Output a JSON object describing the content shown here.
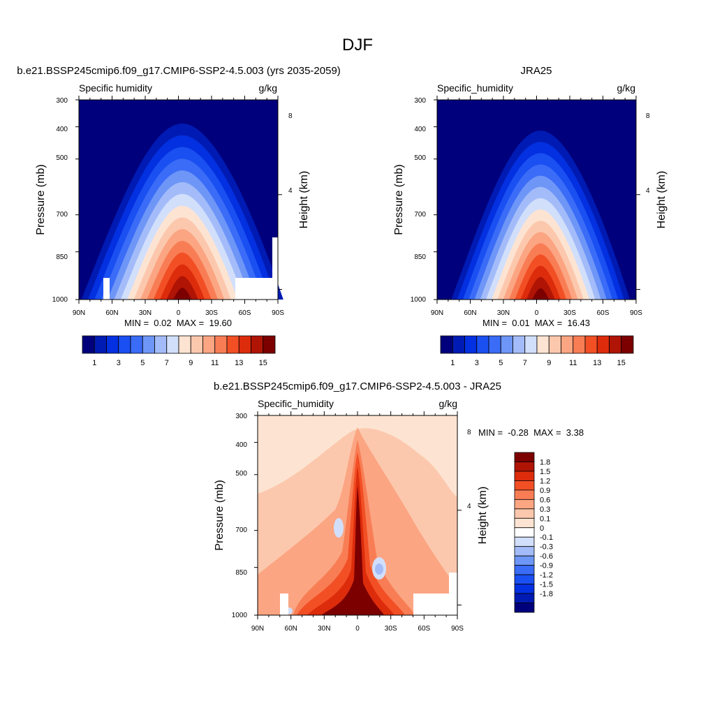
{
  "page_title": "DJF",
  "colors": {
    "abs_scale": [
      "#00007d",
      "#001bb3",
      "#0330e0",
      "#1a4ff2",
      "#3a6cf7",
      "#6e96f7",
      "#a3bcf9",
      "#d2dffb",
      "#fde4d2",
      "#fcc8ad",
      "#fba582",
      "#f87d55",
      "#f24f25",
      "#dc2c0c",
      "#b01405",
      "#7d0000"
    ],
    "diff_scale": [
      "#00007d",
      "#001bb3",
      "#0330e0",
      "#1a4ff2",
      "#3a6cf7",
      "#6e96f7",
      "#a3bcf9",
      "#d2dffb",
      "#ffffff",
      "#fde4d2",
      "#fcc8ad",
      "#fba582",
      "#f87d55",
      "#f24f25",
      "#dc2c0c",
      "#b01405",
      "#7d0000"
    ]
  },
  "chart_data": [
    {
      "type": "heatmap",
      "title": "b.e21.BSSP245cmip6.f09_g17.CMIP6-SSP2-4.5.003 (yrs 2035-2059)",
      "left_string": "Specific humidity",
      "right_string": "g/kg",
      "ylabel": "Pressure (mb)",
      "ylabel_right": "Height (km)",
      "x_ticks": [
        "90N",
        "60N",
        "30N",
        "0",
        "30S",
        "60S",
        "90S"
      ],
      "y_ticks": [
        "300",
        "400",
        "500",
        "700",
        "850",
        "1000"
      ],
      "y_ticks_right": [
        "8",
        "4"
      ],
      "stats": {
        "min_label": "MIN =",
        "min": "0.02",
        "max_label": "MAX =",
        "max": "19.60"
      },
      "peak": 19.6,
      "colorbar": {
        "orientation": "horizontal",
        "labels": [
          "1",
          "3",
          "5",
          "7",
          "9",
          "11",
          "13",
          "15"
        ]
      }
    },
    {
      "type": "heatmap",
      "title": "JRA25",
      "left_string": "Specific_humidity",
      "right_string": "g/kg",
      "ylabel": "Pressure (mb)",
      "ylabel_right": "Height (km)",
      "x_ticks": [
        "90N",
        "60N",
        "30N",
        "0",
        "30S",
        "60S",
        "90S"
      ],
      "y_ticks": [
        "300",
        "400",
        "500",
        "700",
        "850",
        "1000"
      ],
      "y_ticks_right": [
        "8",
        "4"
      ],
      "stats": {
        "min_label": "MIN =",
        "min": "0.01",
        "max_label": "MAX =",
        "max": "16.43"
      },
      "peak": 16.43,
      "colorbar": {
        "orientation": "horizontal",
        "labels": [
          "1",
          "3",
          "5",
          "7",
          "9",
          "11",
          "13",
          "15"
        ]
      }
    },
    {
      "type": "heatmap",
      "title": "b.e21.BSSP245cmip6.f09_g17.CMIP6-SSP2-4.5.003 - JRA25",
      "left_string": "Specific_humidity",
      "right_string": "g/kg",
      "ylabel": "Pressure (mb)",
      "ylabel_right": "Height (km)",
      "x_ticks": [
        "90N",
        "60N",
        "30N",
        "0",
        "30S",
        "60S",
        "90S"
      ],
      "y_ticks": [
        "300",
        "400",
        "500",
        "700",
        "850",
        "1000"
      ],
      "y_ticks_right": [
        "8",
        "4"
      ],
      "stats": {
        "min_label": "MIN =",
        "min": "-0.28",
        "max_label": "MAX =",
        "max": "3.38"
      },
      "peak": 3.38,
      "colorbar": {
        "orientation": "vertical",
        "labels": [
          "1.8",
          "1.5",
          "1.2",
          "0.9",
          "0.6",
          "0.3",
          "0.1",
          "0",
          "-0.1",
          "-0.3",
          "-0.6",
          "-0.9",
          "-1.2",
          "-1.5",
          "-1.8"
        ]
      }
    }
  ]
}
